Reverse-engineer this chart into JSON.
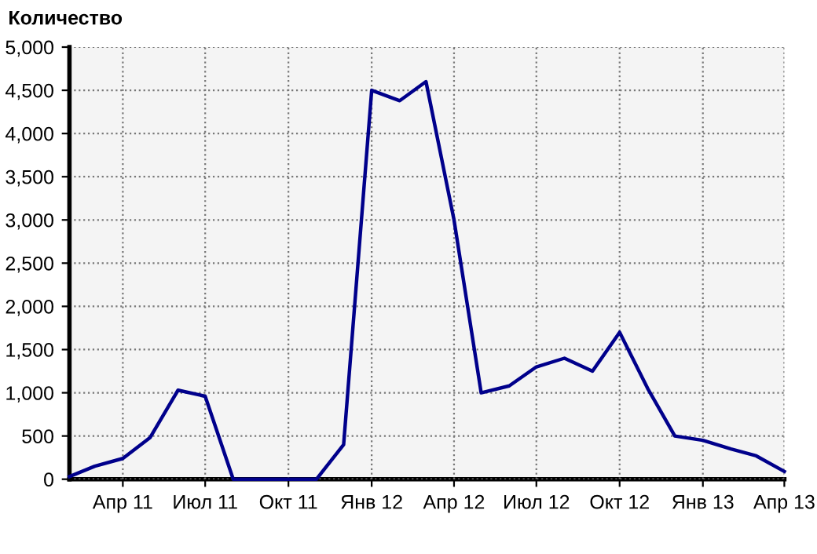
{
  "chart_data": {
    "type": "line",
    "ylabel": "Количество",
    "x": [
      "2011-02",
      "2011-03",
      "2011-04",
      "2011-05",
      "2011-06",
      "2011-07",
      "2011-08",
      "2011-09",
      "2011-10",
      "2011-11",
      "2011-12",
      "2012-01",
      "2012-02",
      "2012-03",
      "2012-04",
      "2012-05",
      "2012-06",
      "2012-07",
      "2012-08",
      "2012-09",
      "2012-10",
      "2012-11",
      "2012-12",
      "2013-01",
      "2013-02",
      "2013-03",
      "2013-04"
    ],
    "series": [
      {
        "color": "#00008b",
        "values": [
          30,
          150,
          240,
          480,
          1030,
          960,
          0,
          0,
          0,
          0,
          400,
          4500,
          4380,
          4600,
          3000,
          1000,
          1080,
          1300,
          1400,
          1250,
          1700,
          1050,
          500,
          450,
          350,
          270,
          90
        ]
      }
    ],
    "xlim": [
      "2011-02",
      "2013-04"
    ],
    "xticks": [
      {
        "value": "2011-04",
        "label": "Апр 11"
      },
      {
        "value": "2011-07",
        "label": "Июл 11"
      },
      {
        "value": "2011-10",
        "label": "Окт 11"
      },
      {
        "value": "2012-01",
        "label": "Янв 12"
      },
      {
        "value": "2012-04",
        "label": "Апр 12"
      },
      {
        "value": "2012-07",
        "label": "Июл 12"
      },
      {
        "value": "2012-10",
        "label": "Окт 12"
      },
      {
        "value": "2013-01",
        "label": "Янв 13"
      },
      {
        "value": "2013-04",
        "label": "Апр 13"
      }
    ],
    "ylim": [
      0,
      5000
    ],
    "yticks": [
      0,
      {
        "value": 500,
        "label": "500"
      },
      {
        "value": 1000,
        "label": "1,000"
      },
      {
        "value": 1500,
        "label": "1,500"
      },
      {
        "value": 2000,
        "label": "2,000"
      },
      {
        "value": 2500,
        "label": "2,500"
      },
      {
        "value": 3000,
        "label": "3,000"
      },
      {
        "value": 3500,
        "label": "3,500"
      },
      {
        "value": 4000,
        "label": "4,000"
      },
      {
        "value": 4500,
        "label": "4,500"
      },
      {
        "value": 5000,
        "label": "5,000"
      }
    ],
    "grid": true,
    "line_style": "solid",
    "marker": "none"
  }
}
